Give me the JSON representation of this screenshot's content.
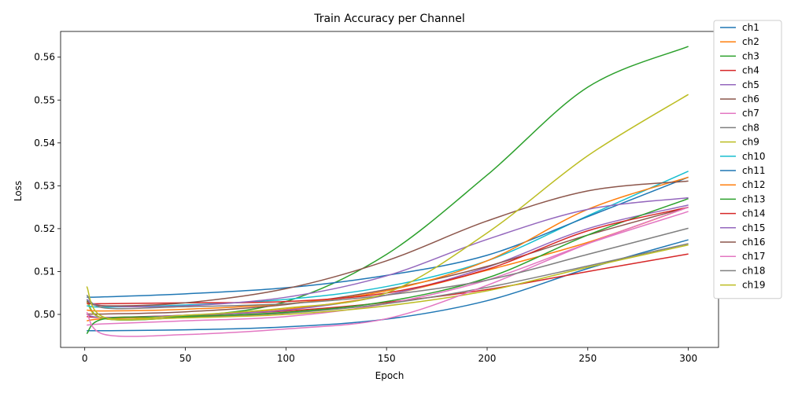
{
  "chart_data": {
    "type": "line",
    "title": "Train Accuracy per Channel",
    "xlabel": "Epoch",
    "ylabel": "Loss",
    "xlim": [
      -12,
      315
    ],
    "ylim": [
      0.4923,
      0.566
    ],
    "xticks": [
      0,
      50,
      100,
      150,
      200,
      250,
      300
    ],
    "yticks": [
      0.5,
      0.51,
      0.52,
      0.53,
      0.54,
      0.55,
      0.56
    ],
    "grid": false,
    "legend_position": "outside-top-right",
    "series": [
      {
        "name": "ch1",
        "color": "#1f77b4",
        "x": [
          1,
          10,
          50,
          100,
          150,
          200,
          250,
          300
        ],
        "y": [
          0.4962,
          0.4962,
          0.4964,
          0.4971,
          0.4989,
          0.5032,
          0.5107,
          0.5174
        ]
      },
      {
        "name": "ch2",
        "color": "#ff7f0e",
        "x": [
          1,
          10,
          50,
          100,
          150,
          200,
          250,
          300
        ],
        "y": [
          0.4985,
          0.499,
          0.4996,
          0.5012,
          0.5045,
          0.5103,
          0.5168,
          0.525
        ]
      },
      {
        "name": "ch3",
        "color": "#2ca02c",
        "x": [
          1,
          10,
          50,
          100,
          150,
          200,
          250,
          300
        ],
        "y": [
          0.5035,
          0.499,
          0.4995,
          0.503,
          0.514,
          0.5325,
          0.553,
          0.5625
        ]
      },
      {
        "name": "ch4",
        "color": "#d62728",
        "x": [
          1,
          10,
          50,
          100,
          150,
          200,
          250,
          300
        ],
        "y": [
          0.4995,
          0.4993,
          0.4998,
          0.5008,
          0.5028,
          0.5058,
          0.51,
          0.5141
        ]
      },
      {
        "name": "ch5",
        "color": "#9467bd",
        "x": [
          1,
          10,
          50,
          100,
          150,
          200,
          250,
          300
        ],
        "y": [
          0.5,
          0.4993,
          0.4998,
          0.501,
          0.5045,
          0.511,
          0.52,
          0.5255
        ]
      },
      {
        "name": "ch6",
        "color": "#8c564b",
        "x": [
          1,
          10,
          50,
          100,
          150,
          200,
          250,
          300
        ],
        "y": [
          0.5001,
          0.5001,
          0.5006,
          0.5023,
          0.5058,
          0.5112,
          0.5185,
          0.525
        ]
      },
      {
        "name": "ch7",
        "color": "#e377c2",
        "x": [
          1,
          10,
          50,
          100,
          150,
          200,
          250,
          300
        ],
        "y": [
          0.4975,
          0.4978,
          0.4985,
          0.4995,
          0.5025,
          0.508,
          0.5165,
          0.524
        ]
      },
      {
        "name": "ch8",
        "color": "#7f7f7f",
        "x": [
          1,
          10,
          50,
          100,
          150,
          200,
          250,
          300
        ],
        "y": [
          0.503,
          0.499,
          0.4993,
          0.5003,
          0.5025,
          0.5063,
          0.5113,
          0.5165
        ]
      },
      {
        "name": "ch9",
        "color": "#bcbd22",
        "x": [
          1,
          10,
          50,
          100,
          150,
          200,
          250,
          300
        ],
        "y": [
          0.503,
          0.499,
          0.4992,
          0.5,
          0.502,
          0.5055,
          0.511,
          0.5162
        ]
      },
      {
        "name": "ch10",
        "color": "#17becf",
        "x": [
          1,
          10,
          50,
          100,
          150,
          200,
          250,
          300
        ],
        "y": [
          0.502,
          0.5017,
          0.5022,
          0.5035,
          0.5065,
          0.5125,
          0.523,
          0.5334
        ]
      },
      {
        "name": "ch11",
        "color": "#1f77b4",
        "x": [
          1,
          10,
          50,
          100,
          150,
          200,
          250,
          300
        ],
        "y": [
          0.504,
          0.5041,
          0.5048,
          0.5062,
          0.5091,
          0.5138,
          0.5228,
          0.532
        ]
      },
      {
        "name": "ch12",
        "color": "#ff7f0e",
        "x": [
          1,
          10,
          50,
          100,
          150,
          200,
          250,
          300
        ],
        "y": [
          0.501,
          0.5008,
          0.5012,
          0.5025,
          0.5055,
          0.5125,
          0.5245,
          0.532
        ]
      },
      {
        "name": "ch13",
        "color": "#2ca02c",
        "x": [
          1,
          10,
          50,
          100,
          150,
          200,
          250,
          300
        ],
        "y": [
          0.4955,
          0.499,
          0.4995,
          0.5005,
          0.503,
          0.5085,
          0.5185,
          0.527
        ]
      },
      {
        "name": "ch14",
        "color": "#d62728",
        "x": [
          1,
          10,
          50,
          100,
          150,
          200,
          250,
          300
        ],
        "y": [
          0.5025,
          0.5025,
          0.5027,
          0.503,
          0.505,
          0.5105,
          0.5195,
          0.525
        ]
      },
      {
        "name": "ch15",
        "color": "#9467bd",
        "x": [
          1,
          10,
          50,
          100,
          150,
          200,
          250,
          300
        ],
        "y": [
          0.5035,
          0.502,
          0.502,
          0.504,
          0.509,
          0.5175,
          0.5245,
          0.5272
        ]
      },
      {
        "name": "ch16",
        "color": "#8c564b",
        "x": [
          1,
          10,
          50,
          100,
          150,
          200,
          250,
          300
        ],
        "y": [
          0.503,
          0.502,
          0.5027,
          0.506,
          0.5125,
          0.5218,
          0.5288,
          0.5311
        ]
      },
      {
        "name": "ch17",
        "color": "#e377c2",
        "x": [
          1,
          10,
          50,
          100,
          150,
          200,
          250,
          300
        ],
        "y": [
          0.5005,
          0.4953,
          0.4953,
          0.4966,
          0.499,
          0.5068,
          0.5165,
          0.525
        ]
      },
      {
        "name": "ch18",
        "color": "#7f7f7f",
        "x": [
          1,
          10,
          50,
          100,
          150,
          200,
          250,
          300
        ],
        "y": [
          0.5045,
          0.5015,
          0.5018,
          0.5025,
          0.5045,
          0.508,
          0.514,
          0.5201
        ]
      },
      {
        "name": "ch19",
        "color": "#bcbd22",
        "x": [
          1,
          10,
          50,
          100,
          150,
          200,
          250,
          300
        ],
        "y": [
          0.5065,
          0.4993,
          0.4998,
          0.5015,
          0.505,
          0.519,
          0.537,
          0.5513
        ]
      }
    ]
  }
}
